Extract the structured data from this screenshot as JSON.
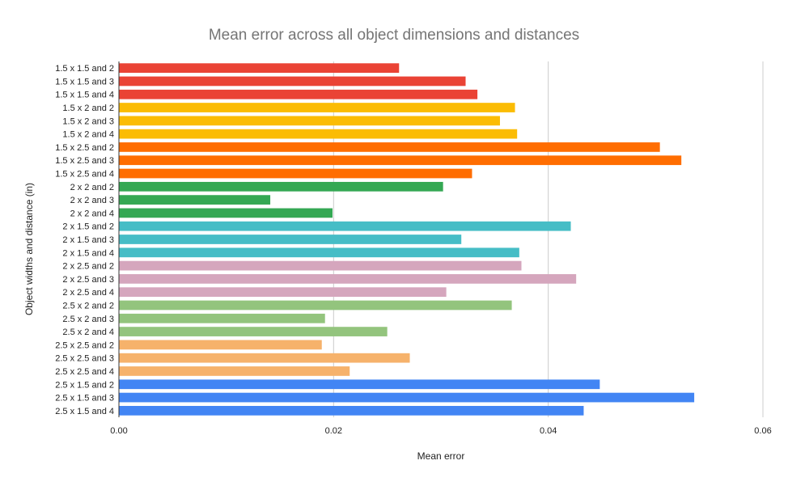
{
  "chart_data": {
    "type": "bar",
    "orientation": "horizontal",
    "title": "Mean error across all object dimensions and distances",
    "xlabel": "Mean error",
    "ylabel": "Object widths and distance (in)",
    "xlim": [
      0,
      0.06
    ],
    "x_ticks": [
      "0.00",
      "0.02",
      "0.04",
      "0.06"
    ],
    "x_tick_values": [
      0,
      0.02,
      0.04,
      0.06
    ],
    "grid": "vertical",
    "legend": "none",
    "categories": [
      "1.5 x 1.5 and 2",
      "1.5 x 1.5 and 3",
      "1.5 x 1.5 and 4",
      "1.5 x 2 and 2",
      "1.5 x 2 and 3",
      "1.5 x 2 and 4",
      "1.5 x 2.5 and 2",
      "1.5 x 2.5 and 3",
      "1.5 x 2.5 and 4",
      "2 x 2 and 2",
      "2 x 2 and 3",
      "2 x 2 and 4",
      "2 x 1.5 and 2",
      "2 x 1.5 and 3",
      "2 x 1.5 and 4",
      "2 x 2.5 and 2",
      "2 x 2.5 and 3",
      "2 x 2.5 and 4",
      "2.5 x 2 and 2",
      "2.5 x 2 and 3",
      "2.5 x 2 and 4",
      "2.5 x 2.5 and 2",
      "2.5 x 2.5 and 3",
      "2.5 x 2.5 and 4",
      "2.5 x 1.5 and 2",
      "2.5 x 1.5 and 3",
      "2.5 x 1.5 and 4"
    ],
    "values": [
      0.0261,
      0.0323,
      0.0334,
      0.0369,
      0.0355,
      0.0371,
      0.0504,
      0.0524,
      0.0329,
      0.0302,
      0.0141,
      0.0199,
      0.0421,
      0.0319,
      0.0373,
      0.0375,
      0.0426,
      0.0305,
      0.0366,
      0.0192,
      0.025,
      0.0189,
      0.0271,
      0.0215,
      0.0448,
      0.0536,
      0.0433
    ],
    "bar_colors": [
      "#ea4335",
      "#ea4335",
      "#ea4335",
      "#fbbc04",
      "#fbbc04",
      "#fbbc04",
      "#ff6d01",
      "#ff6d01",
      "#ff6d01",
      "#34a853",
      "#34a853",
      "#34a853",
      "#46bdc6",
      "#46bdc6",
      "#46bdc6",
      "#d5a6bd",
      "#d5a6bd",
      "#d5a6bd",
      "#93c47d",
      "#93c47d",
      "#93c47d",
      "#f6b26b",
      "#f6b26b",
      "#f6b26b",
      "#4285f4",
      "#4285f4",
      "#4285f4"
    ],
    "grid_color": "#cccccc",
    "axis_color": "#333333"
  }
}
